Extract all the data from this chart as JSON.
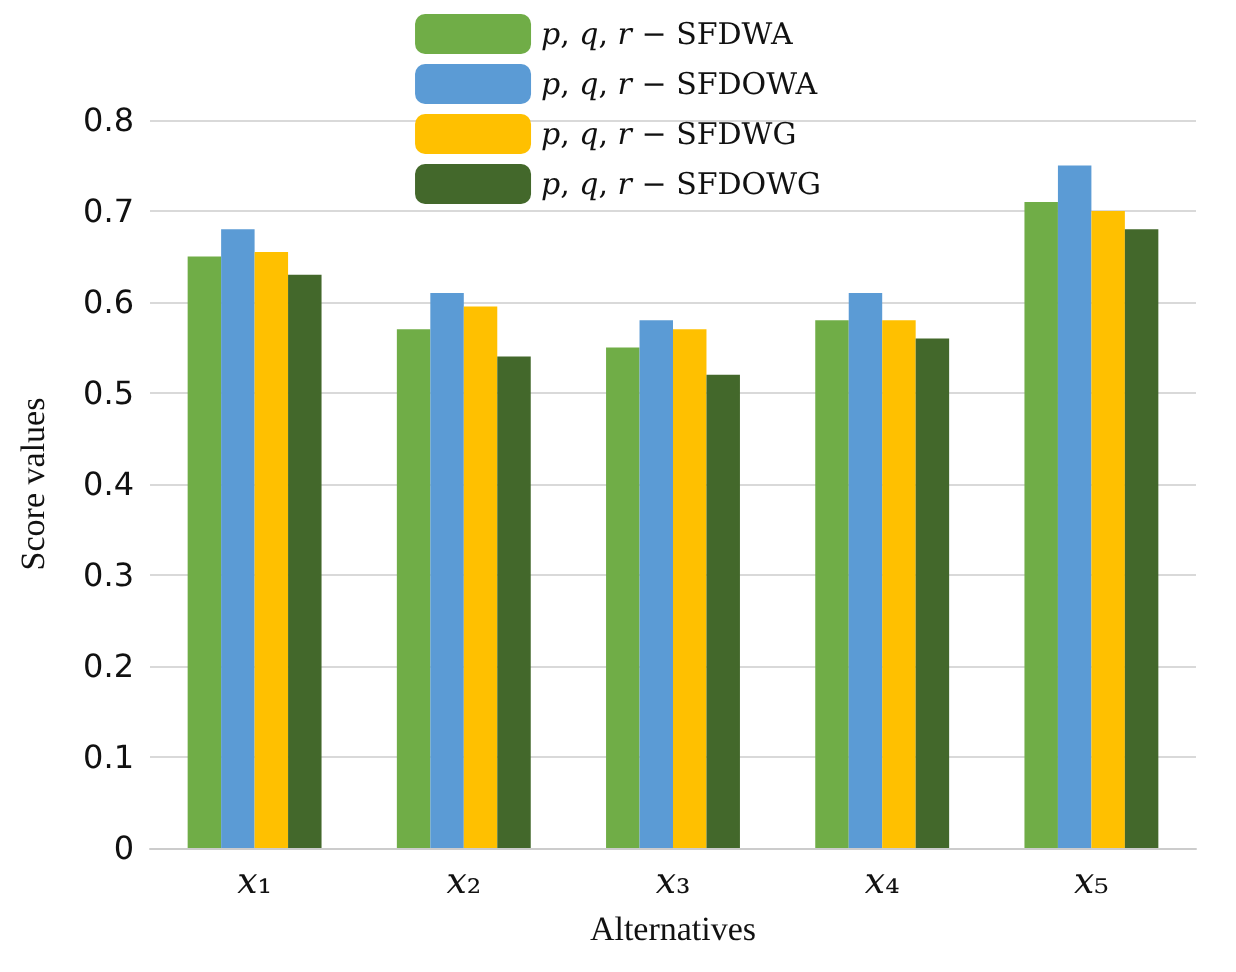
{
  "chart_data": {
    "type": "bar",
    "xlabel": "Alternatives",
    "ylabel": "Score values",
    "categories": [
      "𝑥₁",
      "𝑥₂",
      "𝑥₃",
      "𝑥₄",
      "𝑥₅"
    ],
    "series": [
      {
        "name": "𝑝, 𝑞, 𝑟 − SFDWA",
        "color": "#70ad47",
        "values": [
          0.65,
          0.57,
          0.55,
          0.58,
          0.71
        ]
      },
      {
        "name": "𝑝, 𝑞, 𝑟 − SFDOWA",
        "color": "#5b9bd5",
        "values": [
          0.68,
          0.61,
          0.58,
          0.61,
          0.75
        ]
      },
      {
        "name": "𝑝, 𝑞, 𝑟 − SFDWG",
        "color": "#ffc000",
        "values": [
          0.655,
          0.595,
          0.57,
          0.58,
          0.7
        ]
      },
      {
        "name": "𝑝, 𝑞, 𝑟 − SFDOWG",
        "color": "#43682b",
        "values": [
          0.63,
          0.54,
          0.52,
          0.56,
          0.68
        ]
      }
    ],
    "ylim": [
      0,
      0.8
    ],
    "yticks": [
      0,
      0.1,
      0.2,
      0.3,
      0.4,
      0.5,
      0.6,
      0.7,
      0.8
    ],
    "grid": "y",
    "legend": "top"
  }
}
